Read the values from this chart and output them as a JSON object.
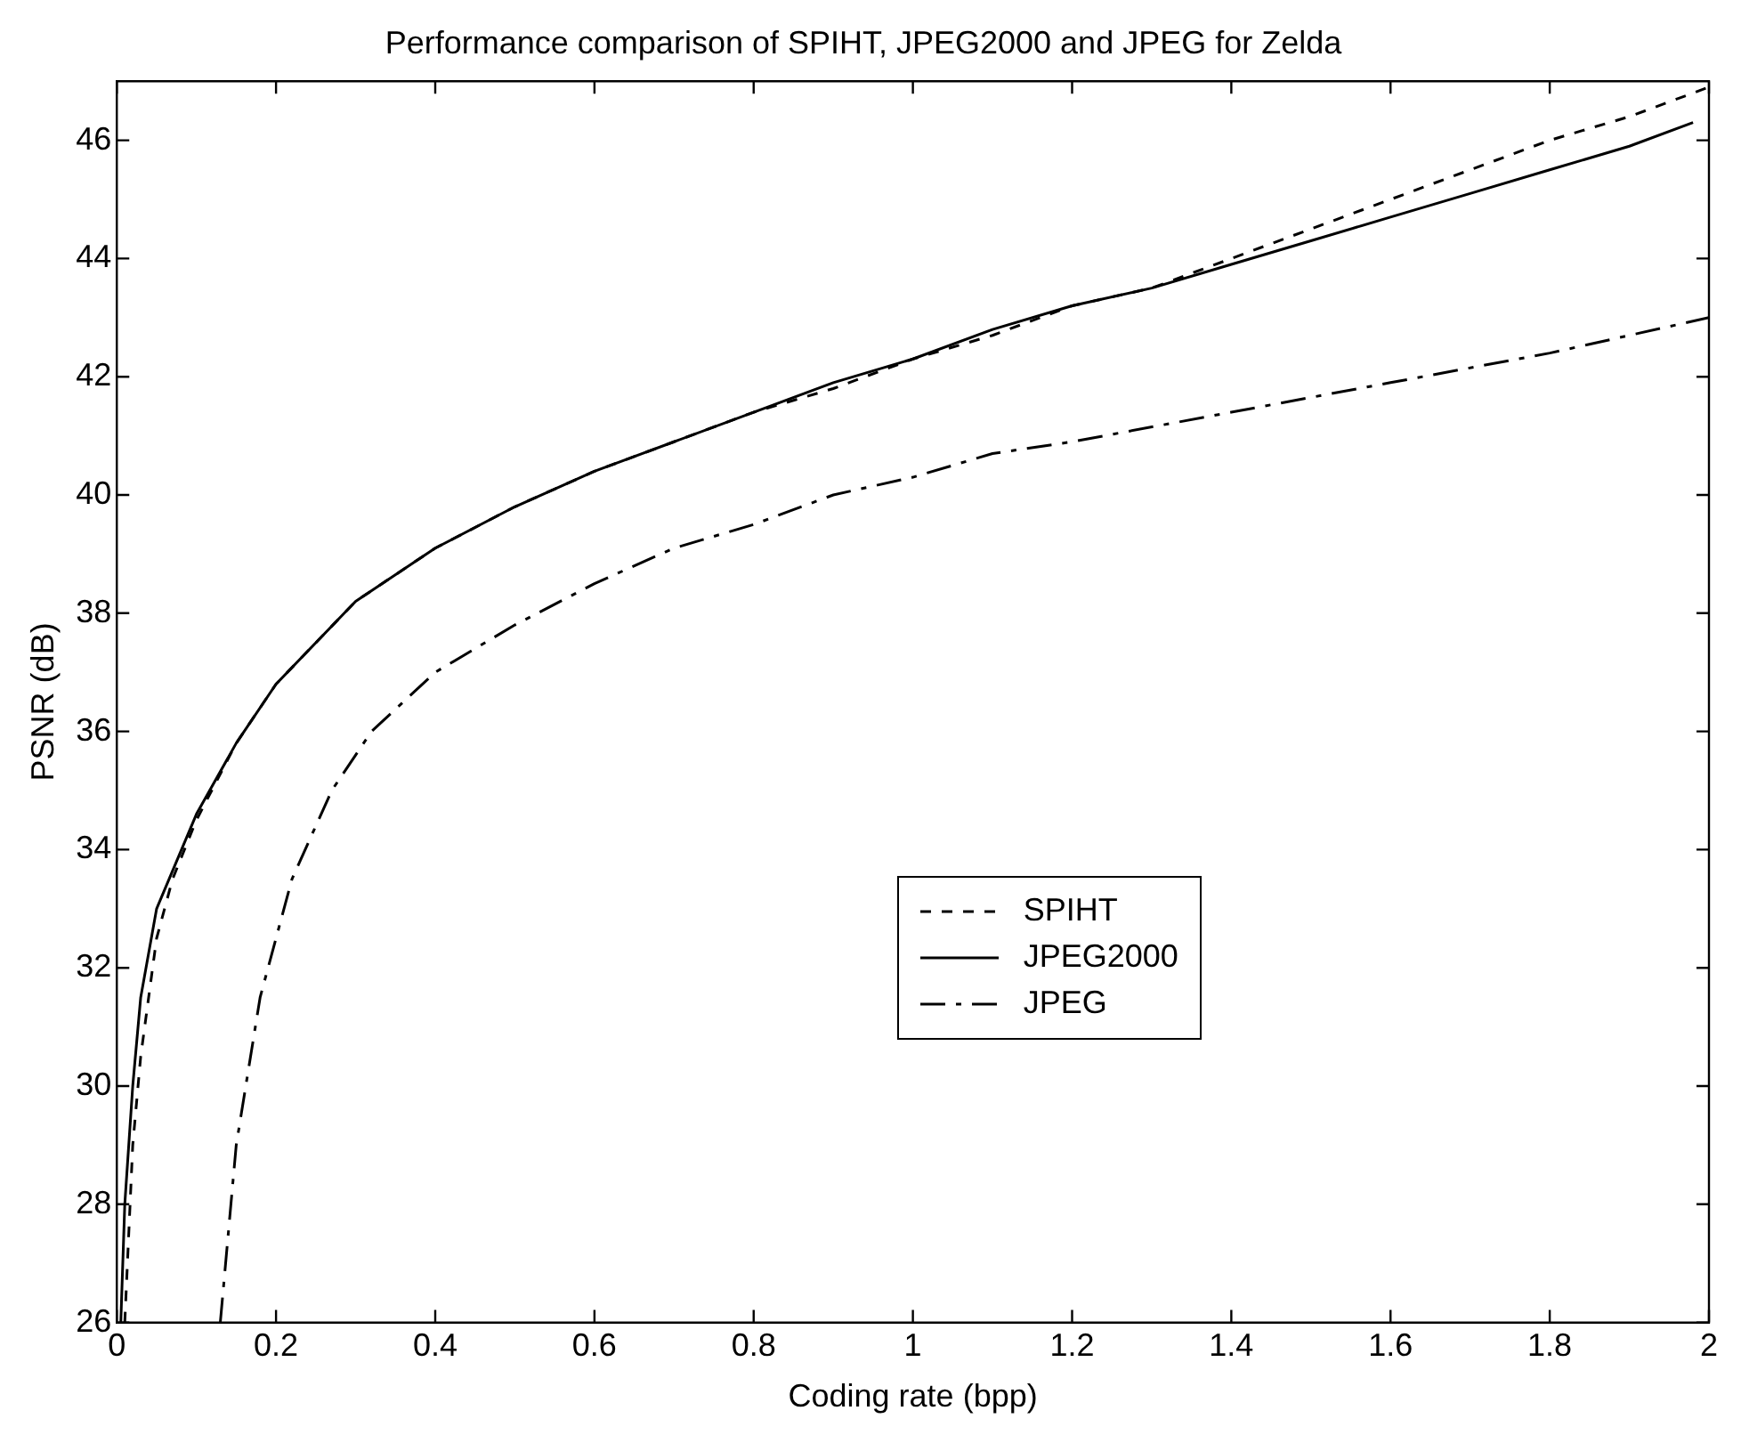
{
  "chart_data": {
    "type": "line",
    "title": "Performance comparison of SPIHT, JPEG2000 and JPEG for Zelda",
    "xlabel": "Coding rate (bpp)",
    "ylabel": "PSNR (dB)",
    "xlim": [
      0,
      2
    ],
    "xticks": [
      0,
      0.2,
      0.4,
      0.6,
      0.8,
      1,
      1.2,
      1.4,
      1.6,
      1.8,
      2
    ],
    "ylim": [
      26,
      47
    ],
    "yticks": [
      26,
      28,
      30,
      32,
      34,
      36,
      38,
      40,
      42,
      44,
      46
    ],
    "grid": false,
    "legend": "right",
    "marker": "none",
    "series": [
      {
        "name": "SPIHT",
        "color": "#000000",
        "line_style": "dashed",
        "x": [
          0.01,
          0.02,
          0.03,
          0.05,
          0.07,
          0.1,
          0.15,
          0.2,
          0.3,
          0.4,
          0.5,
          0.6,
          0.7,
          0.8,
          0.9,
          1.0,
          1.1,
          1.2,
          1.3,
          1.4,
          1.5,
          1.6,
          1.7,
          1.8,
          1.9,
          2.0
        ],
        "values": [
          26,
          29,
          30.5,
          32.5,
          33.5,
          34.5,
          35.8,
          36.8,
          38.2,
          39.1,
          39.8,
          40.4,
          40.9,
          41.4,
          41.8,
          42.3,
          42.7,
          43.2,
          43.5,
          44.0,
          44.5,
          45.0,
          45.5,
          46.0,
          46.4,
          46.9
        ]
      },
      {
        "name": "JPEG2000",
        "color": "#000000",
        "line_style": "solid",
        "x": [
          0.005,
          0.01,
          0.02,
          0.03,
          0.05,
          0.1,
          0.15,
          0.2,
          0.3,
          0.4,
          0.5,
          0.6,
          0.7,
          0.8,
          0.9,
          1.0,
          1.1,
          1.2,
          1.3,
          1.4,
          1.5,
          1.6,
          1.7,
          1.8,
          1.9,
          1.98
        ],
        "values": [
          26,
          28,
          30,
          31.5,
          33,
          34.6,
          35.8,
          36.8,
          38.2,
          39.1,
          39.8,
          40.4,
          40.9,
          41.4,
          41.9,
          42.3,
          42.8,
          43.2,
          43.5,
          43.9,
          44.3,
          44.7,
          45.1,
          45.5,
          45.9,
          46.3
        ]
      },
      {
        "name": "JPEG",
        "color": "#000000",
        "line_style": "dashdot",
        "x": [
          0.13,
          0.15,
          0.18,
          0.22,
          0.27,
          0.32,
          0.4,
          0.5,
          0.6,
          0.7,
          0.8,
          0.9,
          1.0,
          1.1,
          1.2,
          1.4,
          1.6,
          1.8,
          2.0
        ],
        "values": [
          26,
          29,
          31.5,
          33.5,
          35,
          36,
          37,
          37.8,
          38.5,
          39.1,
          39.5,
          40,
          40.3,
          40.7,
          40.9,
          41.4,
          41.9,
          42.4,
          43.0
        ]
      }
    ]
  }
}
